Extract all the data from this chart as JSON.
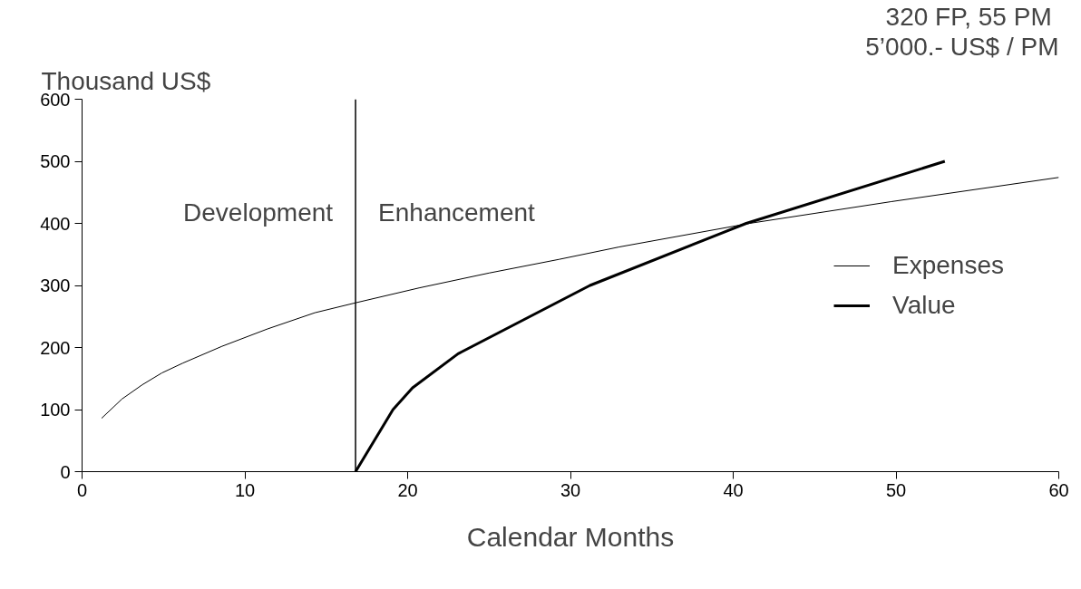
{
  "chart_data": {
    "type": "line",
    "ylabel": "Thousand US$",
    "xlabel": "Calendar Months",
    "xlim": [
      0,
      60
    ],
    "ylim": [
      0,
      600
    ],
    "xticks": [
      0,
      10,
      20,
      30,
      40,
      50,
      60
    ],
    "yticks": [
      0,
      100,
      200,
      300,
      400,
      500,
      600
    ],
    "grid": false,
    "legend": "right",
    "marker": "none",
    "line_style": "solid",
    "series": [
      {
        "name": "Expenses",
        "color": "#000000",
        "x": [
          1.2,
          2.45,
          3.7,
          4.9,
          6.2,
          8.6,
          11.4,
          14.3,
          16.8,
          20.7,
          25,
          29.3,
          33,
          41,
          49.7,
          60
        ],
        "values": [
          86,
          117,
          140,
          159,
          175,
          202,
          230,
          256,
          272,
          296,
          320,
          342,
          362,
          400,
          435,
          474
        ]
      },
      {
        "name": "Value",
        "color": "#000000",
        "x": [
          16.8,
          19.1,
          20.3,
          23.1,
          31.2,
          40.8,
          53
        ],
        "values": [
          0,
          100,
          135,
          190,
          300,
          400,
          500
        ]
      }
    ],
    "ref_lines": [
      {
        "axis": "x",
        "value": 16.8,
        "color": "#000000",
        "line_style": "solid"
      }
    ],
    "annotations": [
      "Development",
      "Enhancement",
      "320 FP,  55 PM",
      "5’000.- US$ / PM"
    ]
  }
}
